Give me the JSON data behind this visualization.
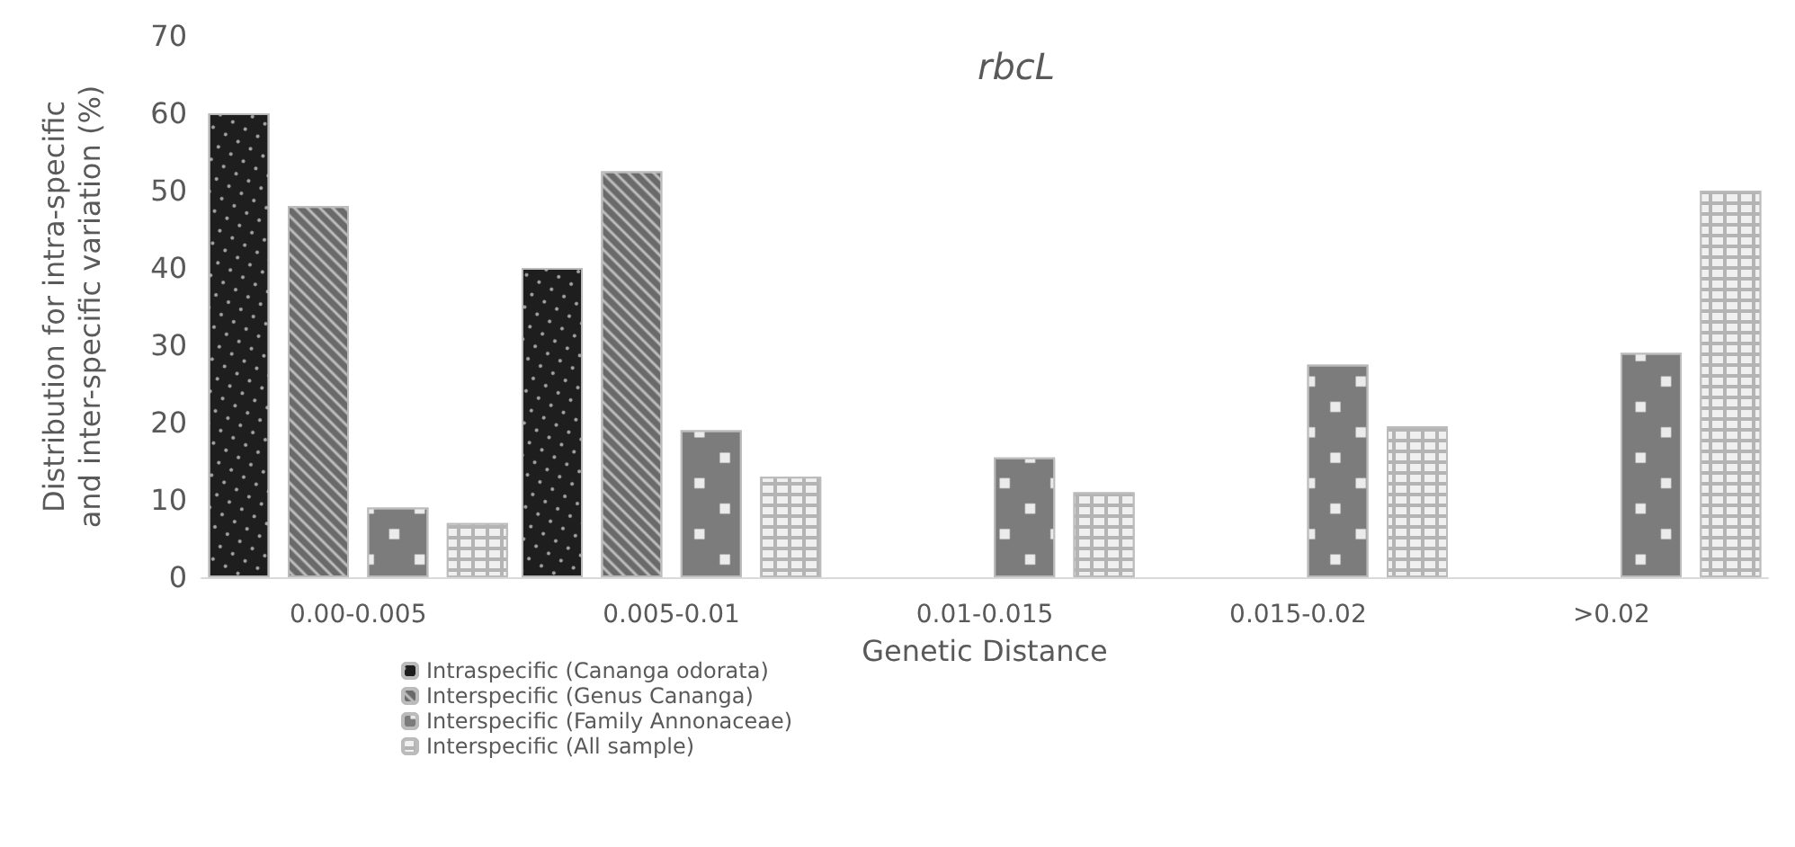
{
  "chart_data": {
    "type": "bar",
    "title": "rbcL",
    "xlabel": "Genetic Distance",
    "ylabel": "Distribution for intra-specific\nand inter-specific variation (%)",
    "categories": [
      "0.00-0.005",
      "0.005-0.01",
      "0.01-0.015",
      "0.015-0.02",
      ">0.02"
    ],
    "series": [
      {
        "name": "Intraspecific (Cananga odorata)",
        "color": "#1e1e1e",
        "values": [
          60,
          40,
          null,
          null,
          null
        ]
      },
      {
        "name": "Interspecific (Genus Cananga)",
        "color": "#6a6a6a",
        "values": [
          48,
          52.5,
          null,
          null,
          null
        ]
      },
      {
        "name": "Interspecific (Family Annonaceae)",
        "color": "#7c7c7c",
        "values": [
          9,
          19,
          15.5,
          27.5,
          29
        ]
      },
      {
        "name": "Interspecific (All sample)",
        "color": "#b4b4b4",
        "values": [
          7,
          13,
          11,
          19.5,
          50
        ]
      }
    ],
    "ylim": [
      0,
      70
    ],
    "yticks": [
      0,
      10,
      20,
      30,
      40,
      50,
      60,
      70
    ],
    "grid": false,
    "legend": "bottom left"
  }
}
